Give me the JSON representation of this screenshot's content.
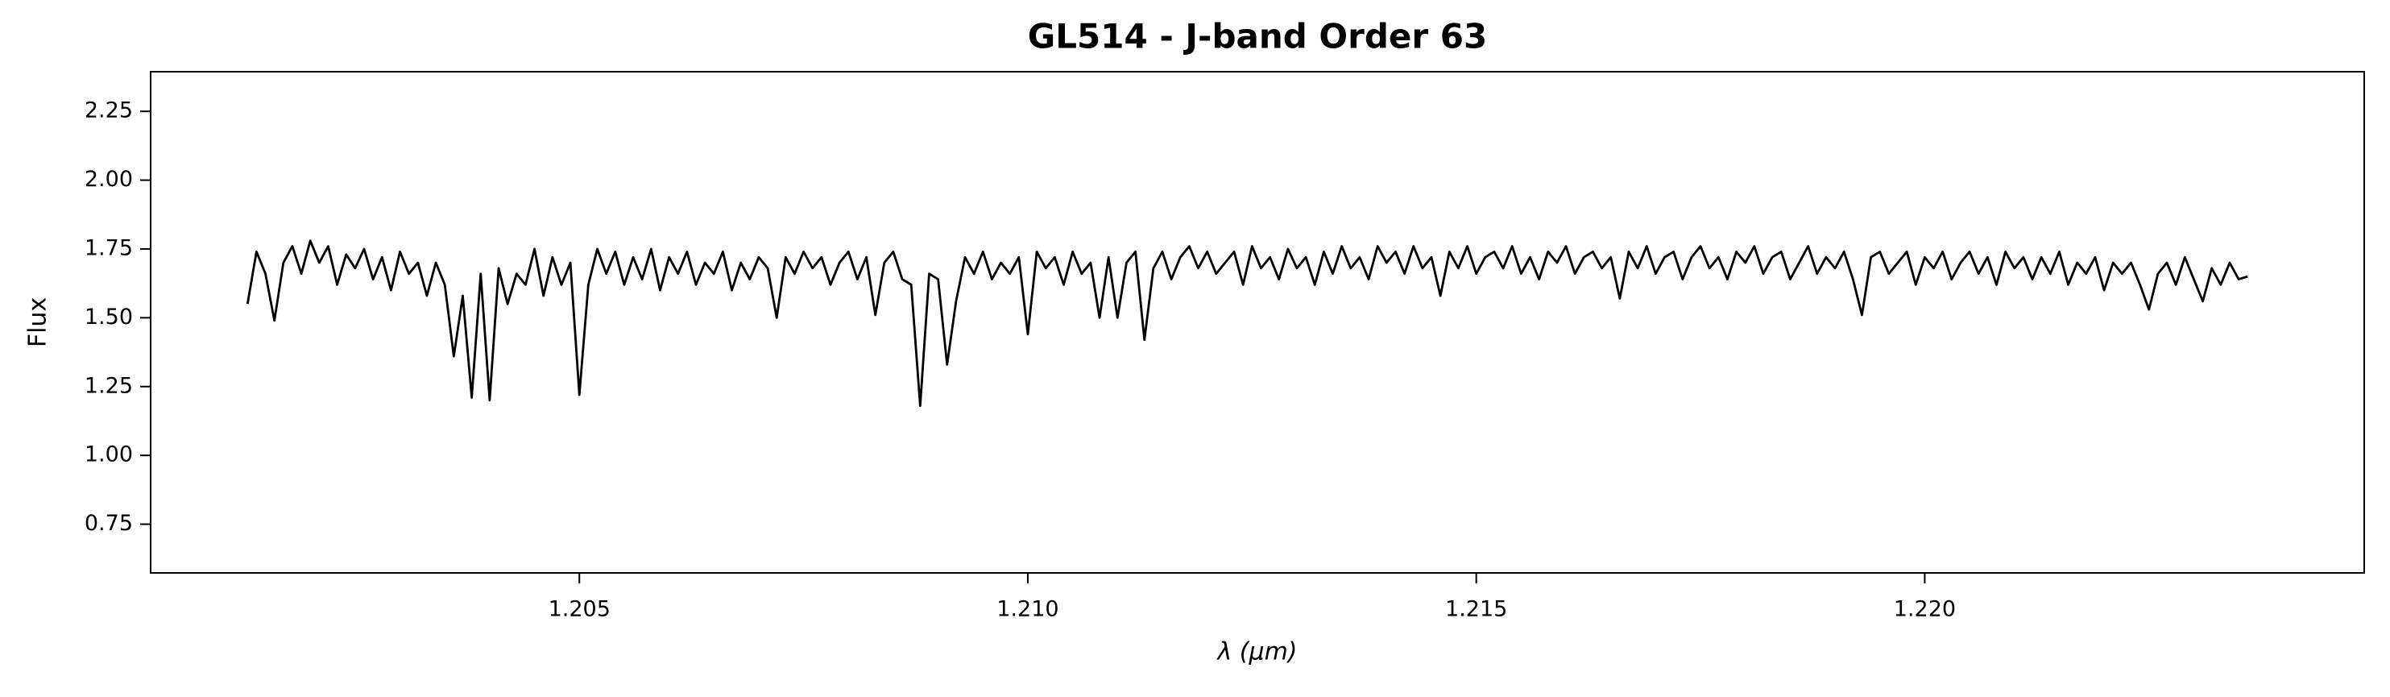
{
  "chart_data": {
    "type": "line",
    "title": "GL514 - J-band Order 63",
    "xlabel": "λ (μm)",
    "ylabel": "Flux",
    "color": "#000000",
    "xlim": [
      1.20022,
      1.2249
    ],
    "ylim": [
      0.573,
      2.394
    ],
    "xticks": [
      1.205,
      {
        "value": 1.21,
        "label": "1.210"
      },
      1.215,
      {
        "value": 1.22,
        "label": "1.220"
      }
    ],
    "yticks": [
      0.75,
      {
        "value": 1.0,
        "label": "1.00"
      },
      1.25,
      {
        "value": 1.5,
        "label": "1.50"
      },
      1.75,
      {
        "value": 2.0,
        "label": "2.00"
      },
      2.25
    ],
    "grid": false,
    "x": [
      1.2013,
      1.2014,
      1.2015,
      1.2016,
      1.2017,
      1.2018,
      1.2019,
      1.202,
      1.2021,
      1.2022,
      1.2023,
      1.2024,
      1.2025,
      1.2026,
      1.2027,
      1.2028,
      1.2029,
      1.203,
      1.2031,
      1.2032,
      1.2033,
      1.2034,
      1.2035,
      1.2036,
      1.2037,
      1.2038,
      1.2039,
      1.204,
      1.2041,
      1.2042,
      1.2043,
      1.2044,
      1.2045,
      1.2046,
      1.2047,
      1.2048,
      1.2049,
      1.205,
      1.2051,
      1.2052,
      1.2053,
      1.2054,
      1.2055,
      1.2056,
      1.2057,
      1.2058,
      1.2059,
      1.206,
      1.2061,
      1.2062,
      1.2063,
      1.2064,
      1.2065,
      1.2066,
      1.2067,
      1.2068,
      1.2069,
      1.207,
      1.2071,
      1.2072,
      1.2073,
      1.2074,
      1.2075,
      1.2076,
      1.2077,
      1.2078,
      1.2079,
      1.208,
      1.2081,
      1.2082,
      1.2083,
      1.2084,
      1.2085,
      1.2086,
      1.2087,
      1.2088,
      1.2089,
      1.209,
      1.2091,
      1.2092,
      1.2093,
      1.2094,
      1.2095,
      1.2096,
      1.2097,
      1.2098,
      1.2099,
      1.21,
      1.2101,
      1.2102,
      1.2103,
      1.2104,
      1.2105,
      1.2106,
      1.2107,
      1.2108,
      1.2109,
      1.211,
      1.2111,
      1.2112,
      1.2113,
      1.2114,
      1.2115,
      1.2116,
      1.2117,
      1.2118,
      1.2119,
      1.212,
      1.2121,
      1.2122,
      1.2123,
      1.2124,
      1.2125,
      1.2126,
      1.2127,
      1.2128,
      1.2129,
      1.213,
      1.2131,
      1.2132,
      1.2133,
      1.2134,
      1.2135,
      1.2136,
      1.2137,
      1.2138,
      1.2139,
      1.214,
      1.2141,
      1.2142,
      1.2143,
      1.2144,
      1.2145,
      1.2146,
      1.2147,
      1.2148,
      1.2149,
      1.215,
      1.2151,
      1.2152,
      1.2153,
      1.2154,
      1.2155,
      1.2156,
      1.2157,
      1.2158,
      1.2159,
      1.216,
      1.2161,
      1.2162,
      1.2163,
      1.2164,
      1.2165,
      1.2166,
      1.2167,
      1.2168,
      1.2169,
      1.217,
      1.2171,
      1.2172,
      1.2173,
      1.2174,
      1.2175,
      1.2176,
      1.2177,
      1.2178,
      1.2179,
      1.218,
      1.2181,
      1.2182,
      1.2183,
      1.2184,
      1.2185,
      1.2186,
      1.2187,
      1.2188,
      1.2189,
      1.219,
      1.2191,
      1.2192,
      1.2193,
      1.2194,
      1.2195,
      1.2196,
      1.2197,
      1.2198,
      1.2199,
      1.22,
      1.2201,
      1.2202,
      1.2203,
      1.2204,
      1.2205,
      1.2206,
      1.2207,
      1.2208,
      1.2209,
      1.221,
      1.2211,
      1.2212,
      1.2213,
      1.2214,
      1.2215,
      1.2216,
      1.2217,
      1.2218,
      1.2219,
      1.222,
      1.2221,
      1.2222,
      1.2223,
      1.2224,
      1.2225,
      1.2226,
      1.2227,
      1.2228,
      1.2229,
      1.223,
      1.2231,
      1.2232,
      1.2233,
      1.2234,
      1.2235,
      1.2236
    ],
    "values": [
      1.55,
      1.74,
      1.66,
      1.49,
      1.7,
      1.76,
      1.66,
      1.78,
      1.7,
      1.76,
      1.62,
      1.73,
      1.68,
      1.75,
      1.64,
      1.72,
      1.6,
      1.74,
      1.66,
      1.7,
      1.58,
      1.7,
      1.62,
      1.36,
      1.58,
      1.21,
      1.66,
      1.2,
      1.68,
      1.55,
      1.66,
      1.62,
      1.75,
      1.58,
      1.72,
      1.62,
      1.7,
      1.22,
      1.62,
      1.75,
      1.66,
      1.74,
      1.62,
      1.72,
      1.64,
      1.75,
      1.6,
      1.72,
      1.66,
      1.74,
      1.62,
      1.7,
      1.66,
      1.74,
      1.6,
      1.7,
      1.64,
      1.72,
      1.68,
      1.5,
      1.72,
      1.66,
      1.74,
      1.68,
      1.72,
      1.62,
      1.7,
      1.74,
      1.64,
      1.72,
      1.51,
      1.7,
      1.74,
      1.64,
      1.62,
      1.18,
      1.66,
      1.64,
      1.33,
      1.56,
      1.72,
      1.66,
      1.74,
      1.64,
      1.7,
      1.66,
      1.72,
      1.44,
      1.74,
      1.68,
      1.72,
      1.62,
      1.74,
      1.66,
      1.7,
      1.5,
      1.72,
      1.5,
      1.7,
      1.74,
      1.42,
      1.68,
      1.74,
      1.64,
      1.72,
      1.76,
      1.68,
      1.74,
      1.66,
      1.7,
      1.74,
      1.62,
      1.76,
      1.68,
      1.72,
      1.64,
      1.75,
      1.68,
      1.72,
      1.62,
      1.74,
      1.66,
      1.76,
      1.68,
      1.72,
      1.64,
      1.76,
      1.7,
      1.74,
      1.66,
      1.76,
      1.68,
      1.72,
      1.58,
      1.74,
      1.68,
      1.76,
      1.66,
      1.72,
      1.74,
      1.68,
      1.76,
      1.66,
      1.72,
      1.64,
      1.74,
      1.7,
      1.76,
      1.66,
      1.72,
      1.74,
      1.68,
      1.72,
      1.57,
      1.74,
      1.68,
      1.76,
      1.66,
      1.72,
      1.74,
      1.64,
      1.72,
      1.76,
      1.68,
      1.72,
      1.64,
      1.74,
      1.7,
      1.76,
      1.66,
      1.72,
      1.74,
      1.64,
      1.7,
      1.76,
      1.66,
      1.72,
      1.68,
      1.74,
      1.64,
      1.51,
      1.72,
      1.74,
      1.66,
      1.7,
      1.74,
      1.62,
      1.72,
      1.68,
      1.74,
      1.64,
      1.7,
      1.74,
      1.66,
      1.72,
      1.62,
      1.74,
      1.68,
      1.72,
      1.64,
      1.72,
      1.66,
      1.74,
      1.62,
      1.7,
      1.66,
      1.72,
      1.6,
      1.7,
      1.66,
      1.7,
      1.62,
      1.53,
      1.66,
      1.7,
      1.62,
      1.72,
      1.64,
      1.56,
      1.68,
      1.62,
      1.7,
      1.64,
      1.65
    ]
  }
}
